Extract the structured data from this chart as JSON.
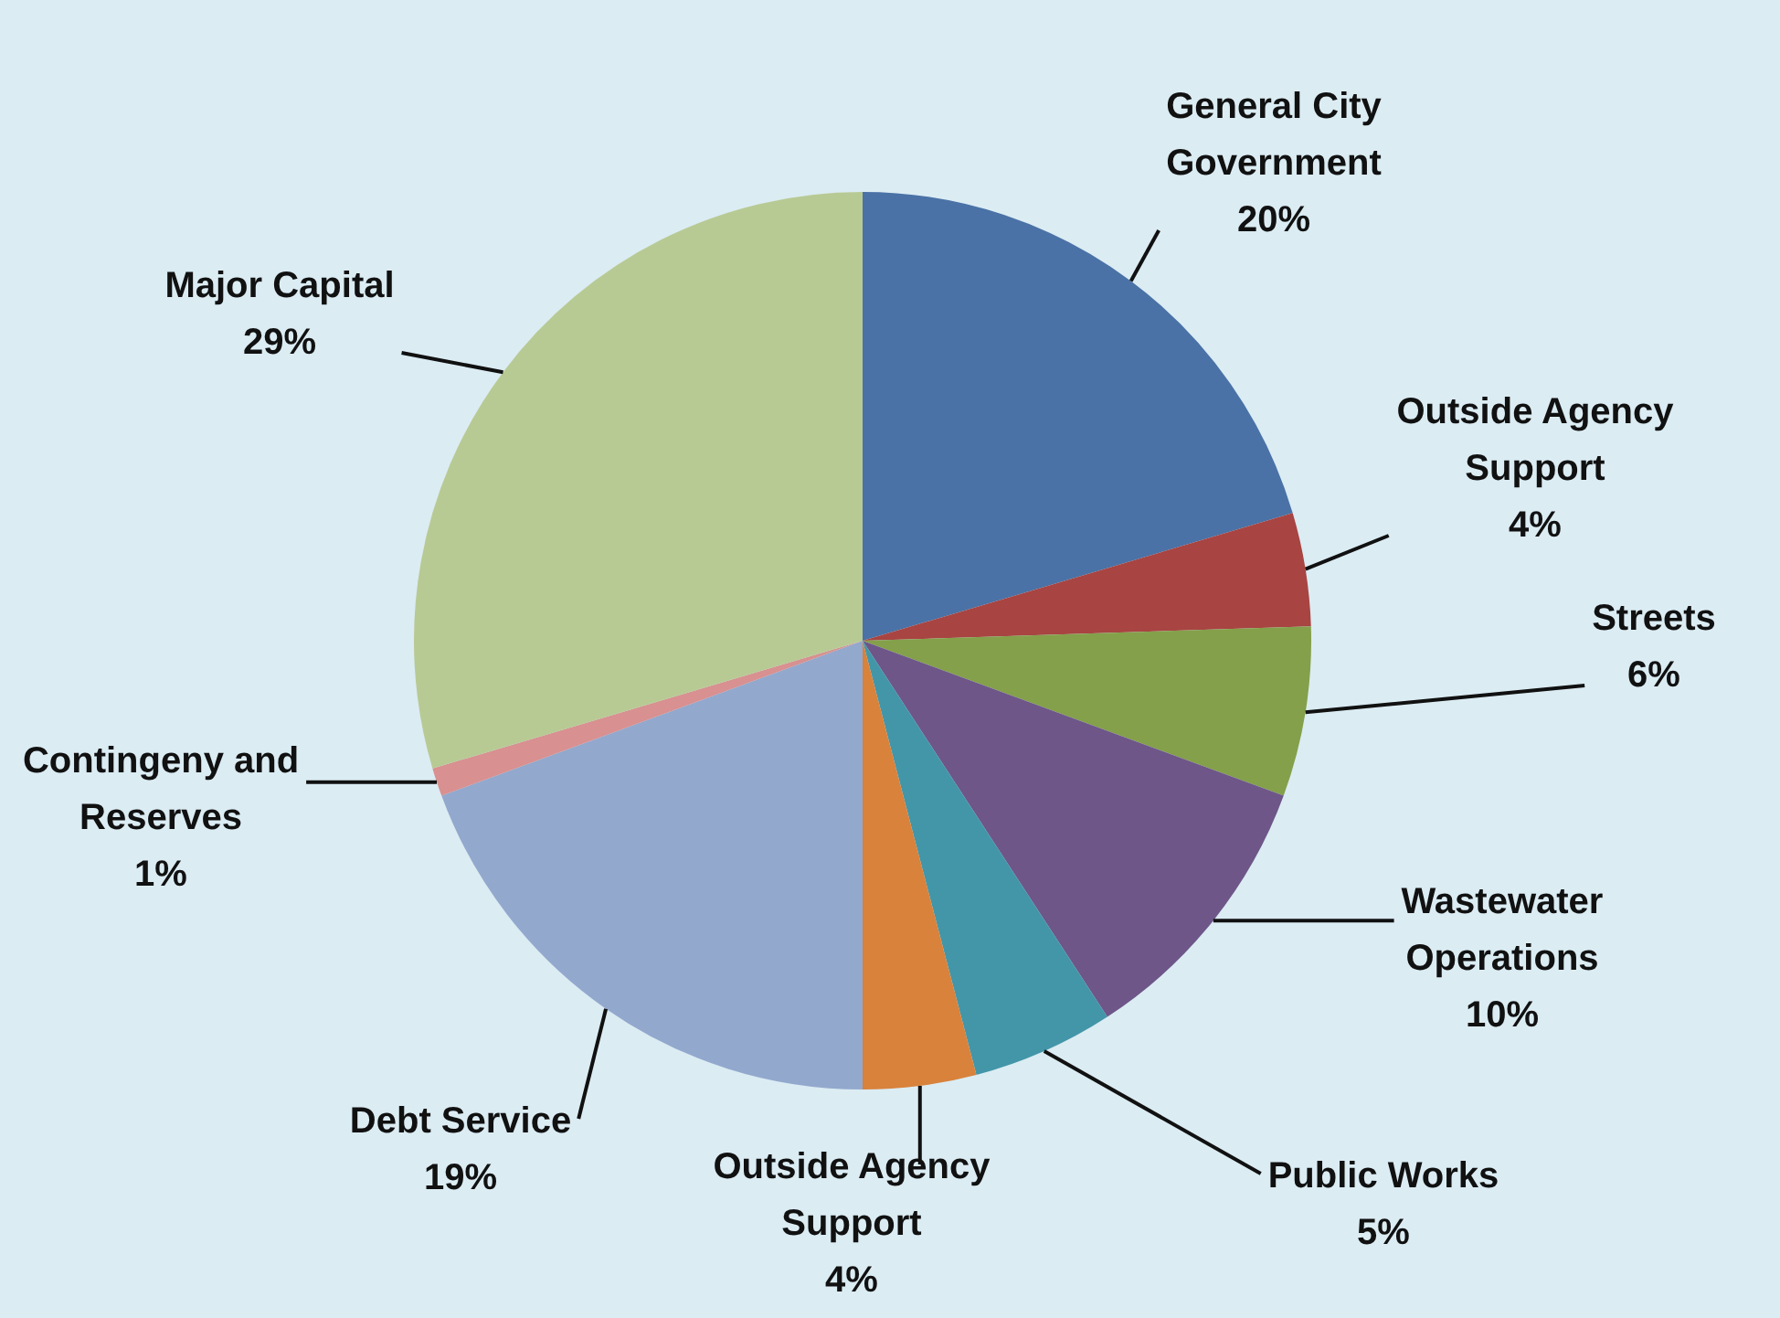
{
  "chart_data": {
    "type": "pie",
    "categories": [
      "General City Government",
      "Outside Agency Support",
      "Streets",
      "Wastewater Operations",
      "Public Works",
      "Outside Agency Support",
      "Debt Service",
      "Contingeny and Reserves",
      "Major Capital"
    ],
    "values": [
      20,
      4,
      6,
      10,
      5,
      4,
      19,
      1,
      29
    ],
    "value_labels": [
      "20%",
      "4%",
      "6%",
      "10%",
      "5%",
      "4%",
      "19%",
      "1%",
      "29%"
    ],
    "colors": [
      "#4a72a6",
      "#a84442",
      "#84a04a",
      "#6e5689",
      "#4296a8",
      "#d8823c",
      "#93a8cd",
      "#d89090",
      "#b8ca94"
    ],
    "legend": false
  }
}
